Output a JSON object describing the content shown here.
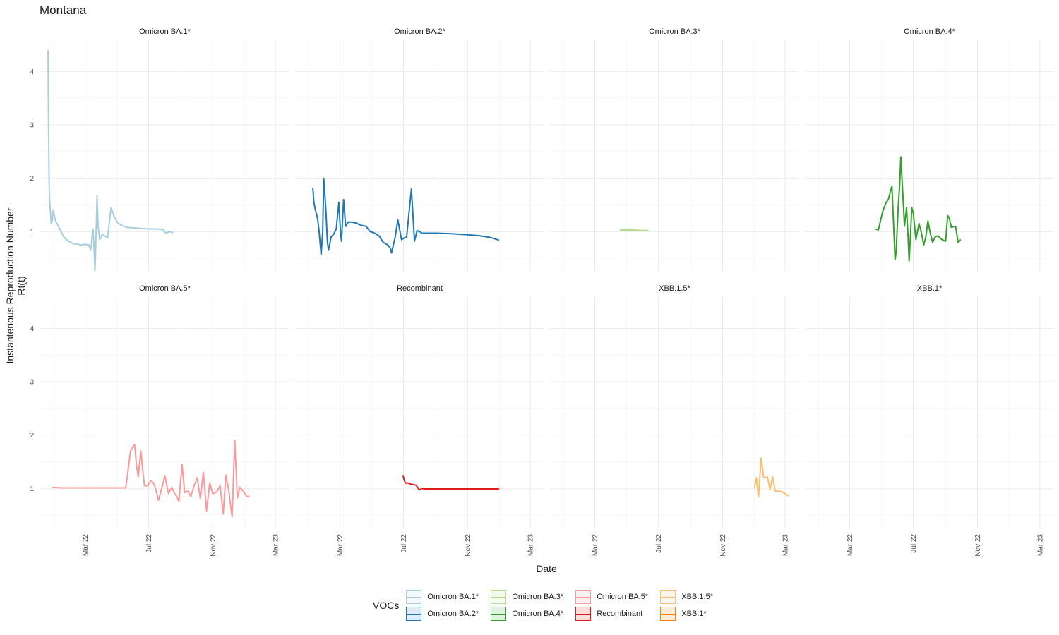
{
  "title": "Montana",
  "chart_data": {
    "type": "line",
    "facets_layout": "4 columns x 2 rows, shared axes",
    "xlabel": "Date",
    "ylabel_lines": [
      "Instantenous Reproduction Number",
      "Rt(t)"
    ],
    "xlim": [
      "2021-12-05",
      "2023-03-28"
    ],
    "ylim": [
      0.25,
      4.6
    ],
    "y_ticks": [
      1,
      2,
      3,
      4
    ],
    "x_ticks": [
      {
        "date": "2022-03-01",
        "label": "Mar 22"
      },
      {
        "date": "2022-07-01",
        "label": "Jul 22"
      },
      {
        "date": "2022-11-01",
        "label": "Nov 22"
      },
      {
        "date": "2023-03-01",
        "label": "Mar 23"
      }
    ],
    "grid": true,
    "legend": {
      "title": "VOCs",
      "position": "bottom",
      "items": [
        {
          "label": "Omicron BA.1*",
          "color": "#a6cee3"
        },
        {
          "label": "Omicron BA.2*",
          "color": "#1f78b4"
        },
        {
          "label": "Omicron BA.3*",
          "color": "#b2df8a"
        },
        {
          "label": "Omicron BA.4*",
          "color": "#33a02c"
        },
        {
          "label": "Omicron BA.5*",
          "color": "#fb9a99"
        },
        {
          "label": "Recombinant",
          "color": "#e31a1c"
        },
        {
          "label": "XBB.1.5*",
          "color": "#fdbf6f"
        },
        {
          "label": "XBB.1*",
          "color": "#ff7f00"
        }
      ]
    },
    "series": [
      {
        "name": "Omicron BA.1*",
        "color": "#a6cee3",
        "points": [
          [
            "2021-12-20",
            4.4
          ],
          [
            "2021-12-21",
            3.0
          ],
          [
            "2021-12-22",
            1.9
          ],
          [
            "2021-12-23",
            1.6
          ],
          [
            "2021-12-25",
            1.3
          ],
          [
            "2021-12-26",
            1.15
          ],
          [
            "2021-12-28",
            1.2
          ],
          [
            "2021-12-30",
            1.4
          ],
          [
            "2022-01-01",
            1.3
          ],
          [
            "2022-01-04",
            1.18
          ],
          [
            "2022-01-08",
            1.12
          ],
          [
            "2022-01-13",
            1.02
          ],
          [
            "2022-01-18",
            0.92
          ],
          [
            "2022-01-24",
            0.85
          ],
          [
            "2022-02-01",
            0.8
          ],
          [
            "2022-02-08",
            0.77
          ],
          [
            "2022-02-14",
            0.77
          ],
          [
            "2022-02-20",
            0.75
          ],
          [
            "2022-03-01",
            0.76
          ],
          [
            "2022-03-08",
            0.75
          ],
          [
            "2022-03-12",
            0.65
          ],
          [
            "2022-03-16",
            1.05
          ],
          [
            "2022-03-18",
            0.73
          ],
          [
            "2022-03-20",
            0.27
          ],
          [
            "2022-03-21",
            0.55
          ],
          [
            "2022-03-24",
            1.67
          ],
          [
            "2022-03-26",
            1.1
          ],
          [
            "2022-03-29",
            0.85
          ],
          [
            "2022-04-03",
            0.95
          ],
          [
            "2022-04-08",
            0.92
          ],
          [
            "2022-04-13",
            0.88
          ],
          [
            "2022-04-20",
            1.45
          ],
          [
            "2022-04-25",
            1.3
          ],
          [
            "2022-05-03",
            1.16
          ],
          [
            "2022-05-10",
            1.12
          ],
          [
            "2022-05-20",
            1.08
          ],
          [
            "2022-06-01",
            1.07
          ],
          [
            "2022-06-15",
            1.06
          ],
          [
            "2022-07-01",
            1.05
          ],
          [
            "2022-07-15",
            1.05
          ],
          [
            "2022-07-28",
            1.04
          ],
          [
            "2022-08-03",
            0.97
          ],
          [
            "2022-08-10",
            1.0
          ],
          [
            "2022-08-17",
            0.98
          ]
        ]
      },
      {
        "name": "Omicron BA.2*",
        "color": "#1f78b4",
        "points": [
          [
            "2022-01-08",
            1.82
          ],
          [
            "2022-01-10",
            1.55
          ],
          [
            "2022-01-13",
            1.4
          ],
          [
            "2022-01-17",
            1.25
          ],
          [
            "2022-01-20",
            1.0
          ],
          [
            "2022-01-24",
            0.57
          ],
          [
            "2022-01-27",
            1.0
          ],
          [
            "2022-01-29",
            2.0
          ],
          [
            "2022-02-02",
            1.4
          ],
          [
            "2022-02-05",
            0.8
          ],
          [
            "2022-02-07",
            0.65
          ],
          [
            "2022-02-12",
            0.9
          ],
          [
            "2022-02-17",
            0.95
          ],
          [
            "2022-02-22",
            1.05
          ],
          [
            "2022-02-27",
            1.55
          ],
          [
            "2022-03-02",
            1.0
          ],
          [
            "2022-03-04",
            0.82
          ],
          [
            "2022-03-08",
            1.6
          ],
          [
            "2022-03-12",
            1.1
          ],
          [
            "2022-03-17",
            1.18
          ],
          [
            "2022-03-22",
            1.18
          ],
          [
            "2022-04-01",
            1.16
          ],
          [
            "2022-04-10",
            1.12
          ],
          [
            "2022-04-20",
            1.1
          ],
          [
            "2022-04-28",
            1.0
          ],
          [
            "2022-05-05",
            0.98
          ],
          [
            "2022-05-15",
            0.92
          ],
          [
            "2022-05-23",
            0.8
          ],
          [
            "2022-06-01",
            0.75
          ],
          [
            "2022-06-06",
            0.68
          ],
          [
            "2022-06-08",
            0.6
          ],
          [
            "2022-06-15",
            0.9
          ],
          [
            "2022-06-20",
            1.22
          ],
          [
            "2022-06-27",
            0.85
          ],
          [
            "2022-07-02",
            0.88
          ],
          [
            "2022-07-07",
            0.9
          ],
          [
            "2022-07-16",
            1.8
          ],
          [
            "2022-07-22",
            0.82
          ],
          [
            "2022-07-27",
            1.02
          ],
          [
            "2022-08-01",
            1.0
          ],
          [
            "2022-08-05",
            0.97
          ],
          [
            "2022-09-01",
            0.97
          ],
          [
            "2022-10-01",
            0.96
          ],
          [
            "2022-11-01",
            0.94
          ],
          [
            "2022-11-25",
            0.92
          ],
          [
            "2022-12-15",
            0.89
          ],
          [
            "2022-12-31",
            0.84
          ]
        ]
      },
      {
        "name": "Omicron BA.3*",
        "color": "#b2df8a",
        "points": [
          [
            "2022-04-18",
            1.05
          ],
          [
            "2022-04-20",
            1.03
          ],
          [
            "2022-05-01",
            1.03
          ],
          [
            "2022-05-15",
            1.03
          ],
          [
            "2022-06-01",
            1.02
          ],
          [
            "2022-06-12",
            1.02
          ]
        ]
      },
      {
        "name": "Omicron BA.4*",
        "color": "#33a02c",
        "points": [
          [
            "2022-04-20",
            1.05
          ],
          [
            "2022-04-25",
            1.03
          ],
          [
            "2022-04-29",
            1.2
          ],
          [
            "2022-05-04",
            1.4
          ],
          [
            "2022-05-10",
            1.55
          ],
          [
            "2022-05-14",
            1.6
          ],
          [
            "2022-05-18",
            1.75
          ],
          [
            "2022-05-21",
            1.85
          ],
          [
            "2022-05-24",
            1.2
          ],
          [
            "2022-05-27",
            0.48
          ],
          [
            "2022-05-29",
            0.6
          ],
          [
            "2022-06-02",
            1.45
          ],
          [
            "2022-06-05",
            1.9
          ],
          [
            "2022-06-07",
            2.4
          ],
          [
            "2022-06-11",
            1.7
          ],
          [
            "2022-06-14",
            1.1
          ],
          [
            "2022-06-18",
            1.45
          ],
          [
            "2022-06-21",
            0.9
          ],
          [
            "2022-06-23",
            0.45
          ],
          [
            "2022-06-26",
            1.0
          ],
          [
            "2022-06-28",
            1.45
          ],
          [
            "2022-07-01",
            1.35
          ],
          [
            "2022-07-06",
            0.85
          ],
          [
            "2022-07-12",
            1.15
          ],
          [
            "2022-07-16",
            1.0
          ],
          [
            "2022-07-21",
            0.75
          ],
          [
            "2022-07-25",
            0.9
          ],
          [
            "2022-07-29",
            1.2
          ],
          [
            "2022-08-02",
            1.0
          ],
          [
            "2022-08-07",
            0.8
          ],
          [
            "2022-08-12",
            0.9
          ],
          [
            "2022-08-17",
            0.92
          ],
          [
            "2022-08-25",
            0.85
          ],
          [
            "2022-09-01",
            0.82
          ],
          [
            "2022-09-05",
            1.3
          ],
          [
            "2022-09-08",
            1.25
          ],
          [
            "2022-09-12",
            1.08
          ],
          [
            "2022-09-20",
            1.1
          ],
          [
            "2022-09-25",
            0.8
          ],
          [
            "2022-09-30",
            0.85
          ]
        ]
      },
      {
        "name": "Omicron BA.5*",
        "color": "#fb9a99",
        "points": [
          [
            "2021-12-28",
            1.02
          ],
          [
            "2022-01-15",
            1.01
          ],
          [
            "2022-02-01",
            1.01
          ],
          [
            "2022-03-01",
            1.01
          ],
          [
            "2022-04-01",
            1.01
          ],
          [
            "2022-05-01",
            1.01
          ],
          [
            "2022-05-18",
            1.01
          ],
          [
            "2022-05-22",
            1.3
          ],
          [
            "2022-05-27",
            1.7
          ],
          [
            "2022-06-01",
            1.78
          ],
          [
            "2022-06-04",
            1.82
          ],
          [
            "2022-06-08",
            1.4
          ],
          [
            "2022-06-11",
            1.22
          ],
          [
            "2022-06-16",
            1.7
          ],
          [
            "2022-06-20",
            1.3
          ],
          [
            "2022-06-23",
            1.05
          ],
          [
            "2022-06-29",
            1.05
          ],
          [
            "2022-07-05",
            1.15
          ],
          [
            "2022-07-10",
            1.1
          ],
          [
            "2022-07-14",
            1.0
          ],
          [
            "2022-07-20",
            0.78
          ],
          [
            "2022-07-26",
            1.0
          ],
          [
            "2022-08-01",
            1.24
          ],
          [
            "2022-08-08",
            0.9
          ],
          [
            "2022-08-14",
            1.02
          ],
          [
            "2022-08-20",
            0.9
          ],
          [
            "2022-08-24",
            0.85
          ],
          [
            "2022-08-28",
            0.76
          ],
          [
            "2022-09-03",
            1.45
          ],
          [
            "2022-09-08",
            0.92
          ],
          [
            "2022-09-14",
            0.95
          ],
          [
            "2022-09-20",
            0.85
          ],
          [
            "2022-09-26",
            1.05
          ],
          [
            "2022-10-02",
            1.2
          ],
          [
            "2022-10-08",
            0.82
          ],
          [
            "2022-10-14",
            1.3
          ],
          [
            "2022-10-20",
            0.58
          ],
          [
            "2022-10-26",
            1.1
          ],
          [
            "2022-11-01",
            0.9
          ],
          [
            "2022-11-08",
            0.93
          ],
          [
            "2022-11-15",
            1.05
          ],
          [
            "2022-11-21",
            0.52
          ],
          [
            "2022-11-26",
            1.25
          ],
          [
            "2022-12-01",
            1.0
          ],
          [
            "2022-12-08",
            0.47
          ],
          [
            "2022-12-13",
            1.9
          ],
          [
            "2022-12-18",
            0.82
          ],
          [
            "2022-12-23",
            1.02
          ],
          [
            "2022-12-29",
            0.95
          ],
          [
            "2023-01-05",
            0.85
          ],
          [
            "2023-01-10",
            0.85
          ]
        ]
      },
      {
        "name": "Recombinant",
        "color": "#e31a1c",
        "points": [
          [
            "2022-06-30",
            1.25
          ],
          [
            "2022-07-02",
            1.16
          ],
          [
            "2022-07-05",
            1.1
          ],
          [
            "2022-07-10",
            1.1
          ],
          [
            "2022-07-15",
            1.08
          ],
          [
            "2022-07-20",
            1.07
          ],
          [
            "2022-07-25",
            1.06
          ],
          [
            "2022-07-28",
            1.02
          ],
          [
            "2022-07-31",
            0.97
          ],
          [
            "2022-08-05",
            1.0
          ],
          [
            "2022-08-10",
            0.99
          ],
          [
            "2022-09-01",
            0.99
          ],
          [
            "2022-10-01",
            0.99
          ],
          [
            "2022-11-01",
            0.99
          ],
          [
            "2022-12-01",
            0.99
          ],
          [
            "2022-12-31",
            0.99
          ]
        ]
      },
      {
        "name": "XBB.1.5*",
        "color": "#fdbf6f",
        "points": [
          [
            "2023-01-01",
            1.0
          ],
          [
            "2023-01-05",
            1.2
          ],
          [
            "2023-01-09",
            0.84
          ],
          [
            "2023-01-14",
            1.57
          ],
          [
            "2023-01-19",
            1.2
          ],
          [
            "2023-01-23",
            1.2
          ],
          [
            "2023-01-26",
            1.22
          ],
          [
            "2023-01-31",
            0.98
          ],
          [
            "2023-02-05",
            1.22
          ],
          [
            "2023-02-10",
            0.95
          ],
          [
            "2023-02-16",
            0.95
          ],
          [
            "2023-02-22",
            0.94
          ],
          [
            "2023-03-01",
            0.9
          ],
          [
            "2023-03-08",
            0.86
          ]
        ]
      },
      {
        "name": "XBB.1*",
        "color": "#ff7f00",
        "points": []
      }
    ]
  }
}
